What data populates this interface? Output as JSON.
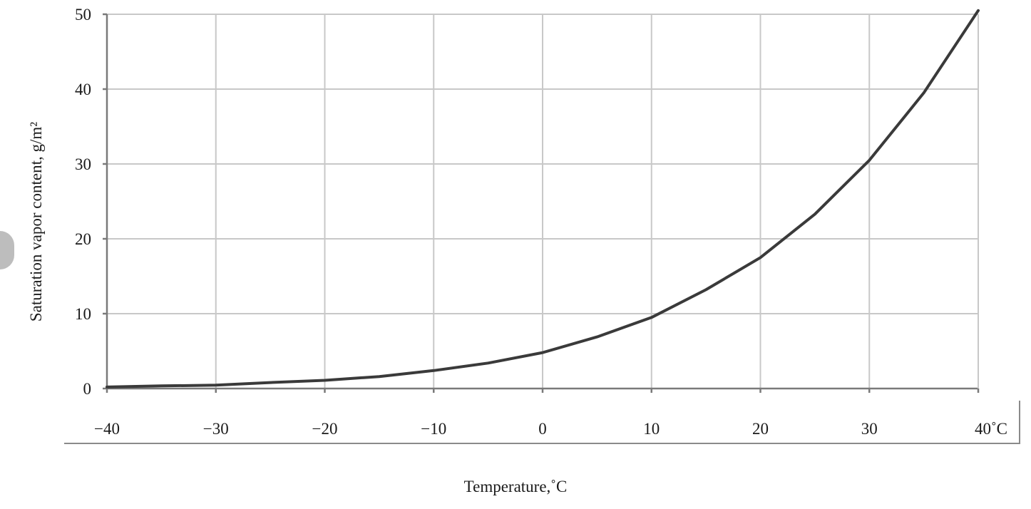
{
  "chart_data": {
    "type": "line",
    "title": "",
    "xlabel": "Temperature,˚C",
    "ylabel": "Saturation vapor content, g/m²",
    "x_tick_labels": [
      "−40",
      "−30",
      "−20",
      "−10",
      "0",
      "10",
      "20",
      "30",
      "40˚C"
    ],
    "y_tick_labels": [
      "0",
      "10",
      "20",
      "30",
      "40",
      "50"
    ],
    "xlim": [
      -40,
      40
    ],
    "ylim": [
      0,
      50
    ],
    "grid": true,
    "series": [
      {
        "x": [
          -40,
          -35,
          -30,
          -25,
          -20,
          -15,
          -10,
          -5,
          0,
          5,
          10,
          15,
          20,
          25,
          30,
          35,
          40
        ],
        "values": [
          0.2,
          0.35,
          0.45,
          0.8,
          1.1,
          1.6,
          2.4,
          3.4,
          4.8,
          6.9,
          9.5,
          13.2,
          17.5,
          23.3,
          30.5,
          39.5,
          50.5
        ]
      }
    ],
    "colors": {
      "line": "#3a3a3a",
      "grid": "#c8c8c8",
      "axis": "#7a7a7a"
    }
  }
}
